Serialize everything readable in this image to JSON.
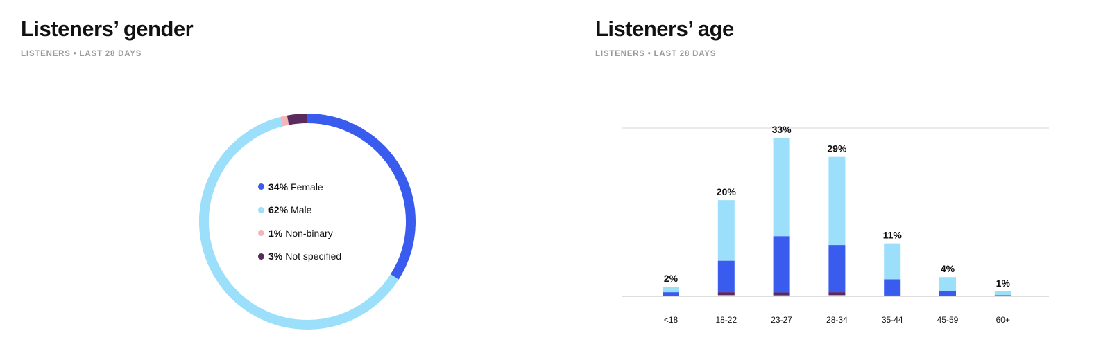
{
  "gender": {
    "title": "Listeners’ gender",
    "subtitle": "LISTENERS • LAST 28 DAYS"
  },
  "age": {
    "title": "Listeners’ age",
    "subtitle": "LISTENERS • LAST 28 DAYS"
  },
  "colors": {
    "female": "#3a5cee",
    "male": "#9cdffa",
    "non_binary": "#f4b4b8",
    "not_specified": "#5a2a5e",
    "grid": "#d4d4d4"
  },
  "chart_data": [
    {
      "type": "pie",
      "variant": "donut",
      "slices": [
        {
          "label": "Female",
          "value": 34,
          "pct_label": "34%"
        },
        {
          "label": "Male",
          "value": 62,
          "pct_label": "62%"
        },
        {
          "label": "Non-binary",
          "value": 1,
          "pct_label": "1%"
        },
        {
          "label": "Not specified",
          "value": 3,
          "pct_label": "3%"
        }
      ],
      "legend": "center"
    },
    {
      "type": "bar",
      "stacked": true,
      "ylim": [
        0,
        35
      ],
      "grid": true,
      "categories": [
        "<18",
        "18-22",
        "23-27",
        "28-34",
        "35-44",
        "45-59",
        "60+"
      ],
      "totals": [
        "2%",
        "20%",
        "33%",
        "29%",
        "11%",
        "4%",
        "1%"
      ],
      "series": [
        {
          "name": "Non-binary",
          "values": [
            0,
            0.25,
            0.2,
            0.25,
            0,
            0,
            0
          ]
        },
        {
          "name": "Not specified",
          "values": [
            0,
            0.6,
            0.6,
            0.6,
            0.15,
            0,
            0
          ]
        },
        {
          "name": "Female",
          "values": [
            0.85,
            6.55,
            11.7,
            9.8,
            3.4,
            1.15,
            0.25
          ]
        },
        {
          "name": "Male",
          "values": [
            1.15,
            12.6,
            20.5,
            18.35,
            7.45,
            2.85,
            0.75
          ]
        }
      ]
    }
  ]
}
